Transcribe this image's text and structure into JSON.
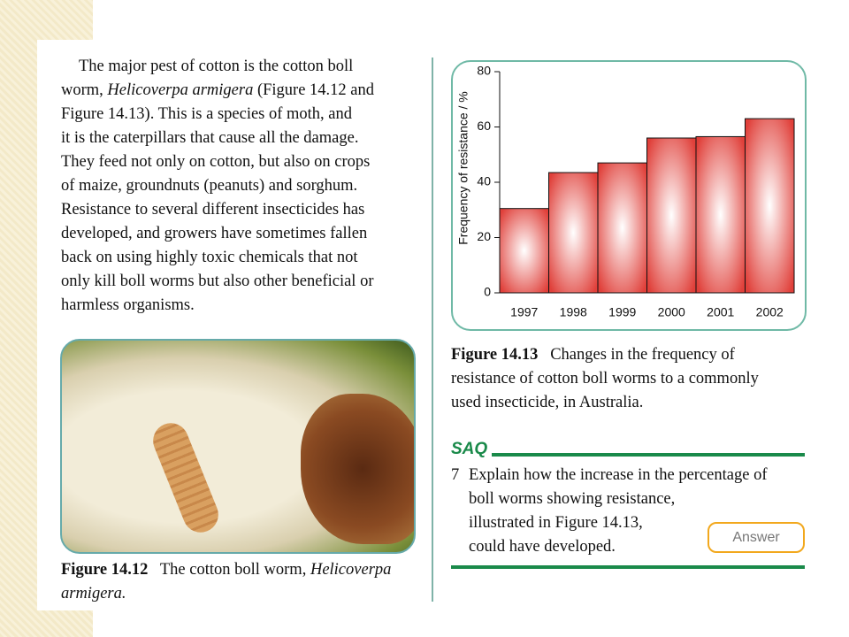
{
  "body_text": {
    "lines": [
      "The major pest of cotton is the cotton boll",
      [
        "worm,",
        "Helicoverpa armigera",
        "(Figure 14.12 and"
      ],
      "Figure 14.13). This is a species of moth, and",
      "it is the caterpillars that cause all the damage.",
      "They feed not only on cotton, but also on crops",
      "of maize, groundnuts (peanuts) and sorghum.",
      "Resistance to several different insecticides has",
      "developed, and growers have sometimes fallen",
      "back on using highly toxic chemicals that not",
      "only kill boll worms but also other beneficial or",
      "harmless organisms."
    ]
  },
  "figure_14_12": {
    "label": "Figure 14.12",
    "caption_lines": [
      [
        "The cotton boll worm,",
        "Helicoverpa"
      ],
      [
        "armigera."
      ]
    ]
  },
  "figure_14_13": {
    "label": "Figure 14.13",
    "caption_lines": [
      "Changes in the frequency of",
      "resistance of cotton boll worms to a commonly",
      "used insecticide, in Australia."
    ]
  },
  "saq": {
    "heading": "SAQ",
    "number": "7",
    "lines": [
      "Explain how the increase in the percentage of",
      "boll worms showing resistance,",
      "illustrated in Figure 14.13,",
      "could have developed."
    ],
    "button": "Answer"
  },
  "chart_data": {
    "type": "bar",
    "y_label": "Frequency of resistance / %",
    "categories": [
      "1997",
      "1998",
      "1999",
      "2000",
      "2001",
      "2002"
    ],
    "values": [
      30.5,
      43.5,
      47,
      56,
      56.5,
      63
    ],
    "color": "#e0403a",
    "ylim": [
      0,
      80
    ],
    "yticks": [
      0,
      20,
      40,
      60,
      80
    ]
  }
}
